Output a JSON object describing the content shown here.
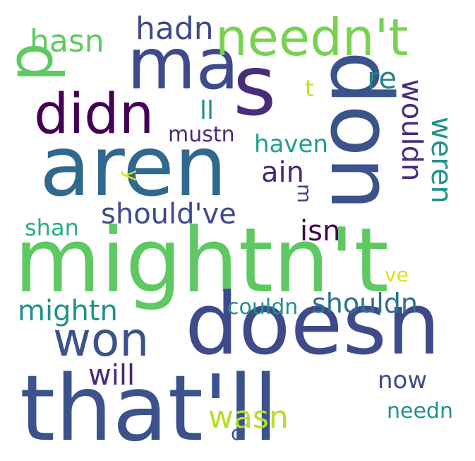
{
  "words": [
    {
      "text": "mightn't",
      "color": "#5ec962"
    },
    {
      "text": "that'll",
      "color": "#3b528b"
    },
    {
      "text": "doesn",
      "color": "#3e4a89"
    },
    {
      "text": "aren",
      "color": "#31688e"
    },
    {
      "text": "don",
      "color": "#3b528b"
    },
    {
      "text": "s",
      "color": "#472d7b"
    },
    {
      "text": "ma",
      "color": "#3e4a89"
    },
    {
      "text": "needn't",
      "color": "#7ad151"
    },
    {
      "text": "d",
      "color": "#5ec962"
    },
    {
      "text": "didn",
      "color": "#440154"
    },
    {
      "text": "won",
      "color": "#3b528b"
    },
    {
      "text": "hasn",
      "color": "#5ec962"
    },
    {
      "text": "hadn",
      "color": "#3e4a89"
    },
    {
      "text": "should've",
      "color": "#3e4a89"
    },
    {
      "text": "wouldn",
      "color": "#472d7b"
    },
    {
      "text": "weren",
      "color": "#21918c"
    },
    {
      "text": "mightn",
      "color": "#21918c"
    },
    {
      "text": "shouldn",
      "color": "#2c728e"
    },
    {
      "text": "will",
      "color": "#482878"
    },
    {
      "text": "wasn",
      "color": "#b5de2b"
    },
    {
      "text": "now",
      "color": "#3e4a89"
    },
    {
      "text": "needn",
      "color": "#21918c"
    },
    {
      "text": "couldn",
      "color": "#21918c"
    },
    {
      "text": "isn",
      "color": "#440154"
    },
    {
      "text": "ain",
      "color": "#482878"
    },
    {
      "text": "haven",
      "color": "#1fa088"
    },
    {
      "text": "mustn",
      "color": "#472d7b"
    },
    {
      "text": "shan",
      "color": "#28ae80"
    },
    {
      "text": "re",
      "color": "#26828e"
    },
    {
      "text": "ll",
      "color": "#21918c"
    },
    {
      "text": "t",
      "color": "#c2df23"
    },
    {
      "text": "y",
      "color": "#d8e219"
    },
    {
      "text": "m",
      "color": "#3e4a89"
    },
    {
      "text": "ve",
      "color": "#d8e219"
    },
    {
      "text": "o",
      "color": "#3b528b"
    }
  ]
}
